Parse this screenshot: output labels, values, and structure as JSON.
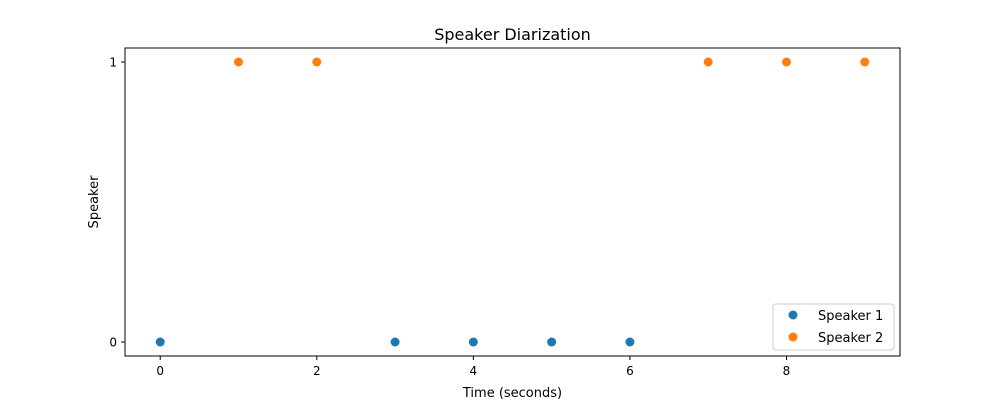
{
  "chart_data": {
    "type": "scatter",
    "title": "Speaker Diarization",
    "xlabel": "Time (seconds)",
    "ylabel": "Speaker",
    "xlim": [
      -0.45,
      9.45
    ],
    "ylim": [
      -0.05,
      1.05
    ],
    "xticks": [
      0,
      2,
      4,
      6,
      8
    ],
    "yticks": [
      0,
      1
    ],
    "grid": false,
    "legend_position": "lower-right",
    "series": [
      {
        "name": "Speaker 1",
        "color": "#1f77b4",
        "x": [
          0,
          3,
          4,
          5,
          6
        ],
        "y": [
          0,
          0,
          0,
          0,
          0
        ]
      },
      {
        "name": "Speaker 2",
        "color": "#ff7f0e",
        "x": [
          1,
          2,
          7,
          8,
          9
        ],
        "y": [
          1,
          1,
          1,
          1,
          1
        ]
      }
    ]
  }
}
